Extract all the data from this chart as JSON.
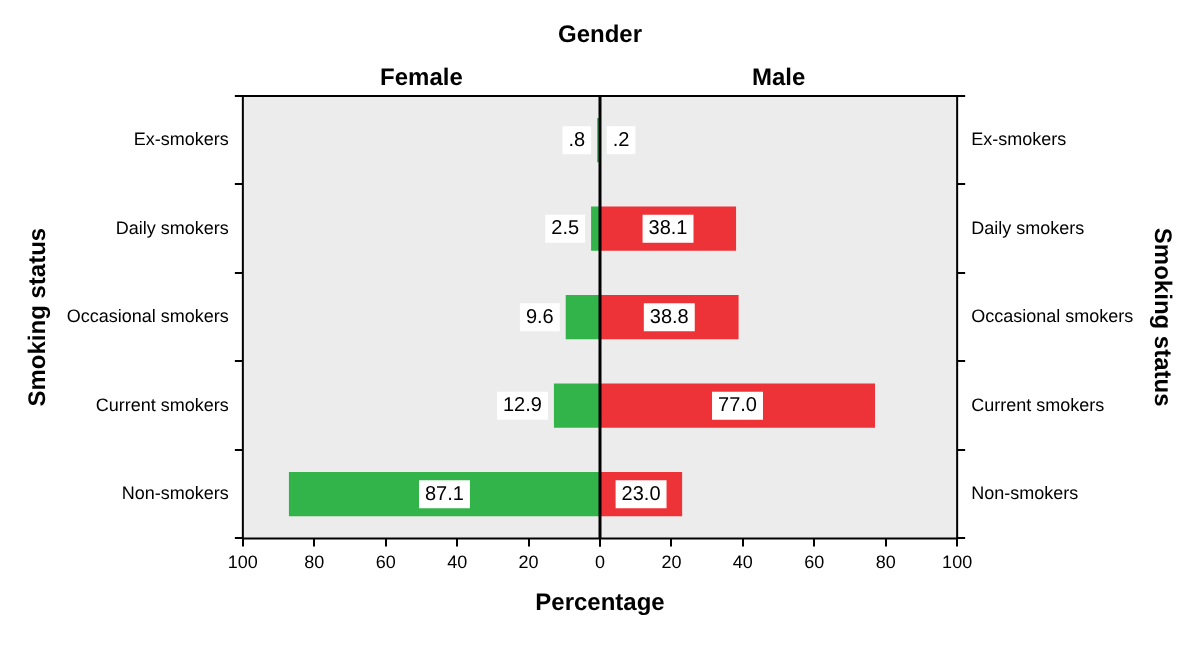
{
  "chart_data": [
    {
      "type": "bar",
      "orientation": "horizontal",
      "title": "Gender",
      "subtitle": "Female",
      "xlabel": "Percentage",
      "ylabel": "Smoking status",
      "categories": [
        "Ex-smokers",
        "Daily smokers",
        "Occasional smokers",
        "Current smokers",
        "Non-smokers"
      ],
      "series": [
        {
          "color": "#33b44a",
          "values": [
            0.8,
            2.5,
            9.6,
            12.9,
            87.1
          ],
          "value_labels": [
            ".8",
            "2.5",
            "9.6",
            "12.9",
            "87.1"
          ]
        }
      ],
      "xlim": [
        100,
        0
      ],
      "xticks": [
        100,
        80,
        60,
        40,
        20,
        {
          "value": 0,
          "label": null
        }
      ],
      "legend": false
    },
    {
      "type": "bar",
      "orientation": "horizontal",
      "subtitle": "Male",
      "y2label": "Smoking status",
      "categories": [
        "Ex-smokers",
        "Daily smokers",
        "Occasional smokers",
        "Current smokers",
        "Non-smokers"
      ],
      "series": [
        {
          "color": "#ee3338",
          "values": [
            0.2,
            38.1,
            38.8,
            77.0,
            23.0
          ],
          "value_labels": [
            ".2",
            "38.1",
            "38.8",
            "77.0",
            "23.0"
          ]
        }
      ],
      "xlim": [
        0,
        100
      ],
      "xticks": [
        0,
        20,
        40,
        60,
        80,
        100
      ],
      "ref_lines": [
        {
          "axis": "x",
          "value": 0,
          "color": "#000000"
        }
      ],
      "legend": false
    }
  ]
}
